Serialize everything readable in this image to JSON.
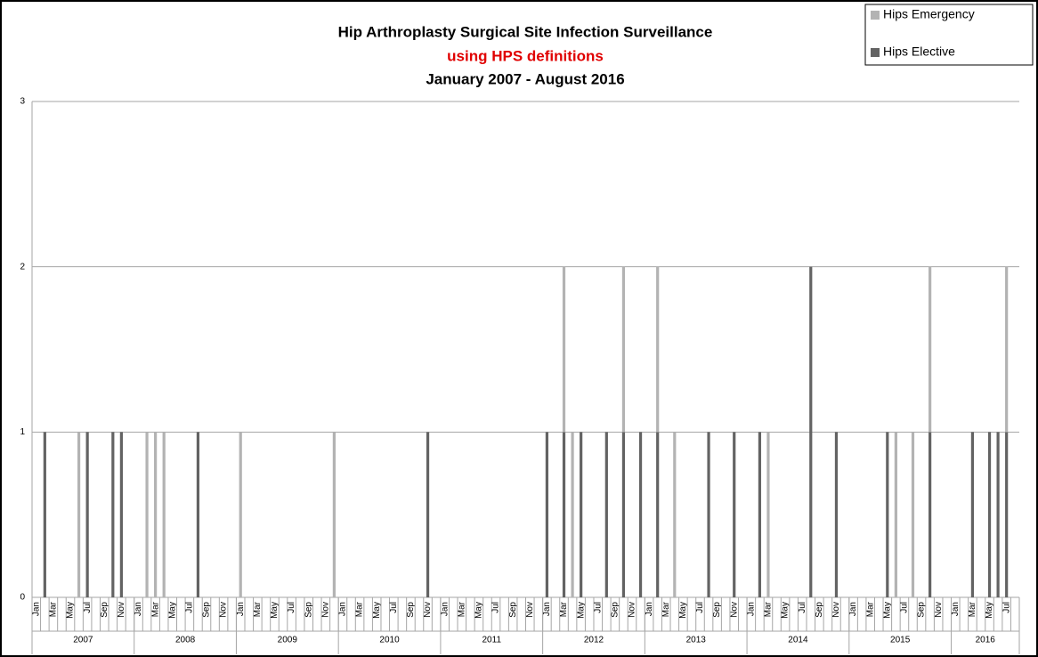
{
  "chart_data": {
    "type": "stacked-bar",
    "title": "Hip Arthroplasty Surgical Site Infection Surveillance",
    "subtitle": "using HPS definitions",
    "period": "January 2007 - August 2016",
    "categories": [
      "Jan",
      null,
      "Mar",
      null,
      "May",
      null,
      "Jul",
      null,
      "Sep",
      null,
      "Nov",
      null,
      "Jan",
      null,
      "Mar",
      null,
      "May",
      null,
      "Jul",
      null,
      "Sep",
      null,
      "Nov",
      null,
      "Jan",
      null,
      "Mar",
      null,
      "May",
      null,
      "Jul",
      null,
      "Sep",
      null,
      "Nov",
      null,
      "Jan",
      null,
      "Mar",
      null,
      "May",
      null,
      "Jul",
      null,
      "Sep",
      null,
      "Nov",
      null,
      "Jan",
      null,
      "Mar",
      null,
      "May",
      null,
      "Jul",
      null,
      "Sep",
      null,
      "Nov",
      null,
      "Jan",
      null,
      "Mar",
      null,
      "May",
      null,
      "Jul",
      null,
      "Sep",
      null,
      "Nov",
      null,
      "Jan",
      null,
      "Mar",
      null,
      "May",
      null,
      "Jul",
      null,
      "Sep",
      null,
      "Nov",
      null,
      "Jan",
      null,
      "Mar",
      null,
      "May",
      null,
      "Jul",
      null,
      "Sep",
      null,
      "Nov",
      null,
      "Jan",
      null,
      "Mar",
      null,
      "May",
      null,
      "Jul",
      null,
      "Sep",
      null,
      "Nov",
      null,
      "Jan",
      null,
      "Mar",
      null,
      "May",
      null,
      "Jul",
      null
    ],
    "x_groups": [
      "2007",
      "2008",
      "2009",
      "2010",
      "2011",
      "2012",
      "2013",
      "2014",
      "2015",
      "2016"
    ],
    "series": [
      {
        "name": "Hips Emergency",
        "color": "#b3b3b3",
        "values": [
          0,
          0,
          0,
          0,
          0,
          1,
          0,
          0,
          0,
          0,
          0,
          0,
          0,
          1,
          1,
          1,
          0,
          0,
          0,
          0,
          0,
          0,
          0,
          0,
          1,
          0,
          0,
          0,
          0,
          0,
          0,
          0,
          0,
          0,
          0,
          1,
          0,
          0,
          0,
          0,
          0,
          0,
          0,
          0,
          0,
          0,
          0,
          0,
          0,
          0,
          0,
          0,
          0,
          0,
          0,
          0,
          0,
          0,
          0,
          0,
          0,
          0,
          1,
          1,
          0,
          0,
          0,
          0,
          0,
          1,
          0,
          0,
          0,
          1,
          0,
          1,
          0,
          0,
          0,
          0,
          0,
          0,
          0,
          0,
          0,
          0,
          1,
          0,
          0,
          0,
          0,
          0,
          0,
          0,
          0,
          0,
          0,
          0,
          0,
          0,
          0,
          1,
          0,
          1,
          0,
          1,
          0,
          0,
          0,
          0,
          0,
          0,
          0,
          0,
          1,
          0
        ]
      },
      {
        "name": "Hips Elective",
        "color": "#636363",
        "values": [
          0,
          1,
          0,
          0,
          0,
          0,
          1,
          0,
          0,
          1,
          1,
          0,
          0,
          0,
          0,
          0,
          0,
          0,
          0,
          1,
          0,
          0,
          0,
          0,
          0,
          0,
          0,
          0,
          0,
          0,
          0,
          0,
          0,
          0,
          0,
          0,
          0,
          0,
          0,
          0,
          0,
          0,
          0,
          0,
          0,
          0,
          1,
          0,
          0,
          0,
          0,
          0,
          0,
          0,
          0,
          0,
          0,
          0,
          0,
          0,
          1,
          0,
          1,
          0,
          1,
          0,
          0,
          1,
          0,
          1,
          0,
          1,
          0,
          1,
          0,
          0,
          0,
          0,
          0,
          1,
          0,
          0,
          1,
          0,
          0,
          1,
          0,
          0,
          0,
          0,
          0,
          2,
          0,
          0,
          1,
          0,
          0,
          0,
          0,
          0,
          1,
          0,
          0,
          0,
          0,
          1,
          0,
          0,
          0,
          0,
          1,
          0,
          1,
          1,
          1,
          0
        ]
      }
    ],
    "ylim": [
      0,
      3
    ],
    "yticks": [
      0,
      1,
      2,
      3
    ],
    "grid": true,
    "legend": "top-right"
  }
}
